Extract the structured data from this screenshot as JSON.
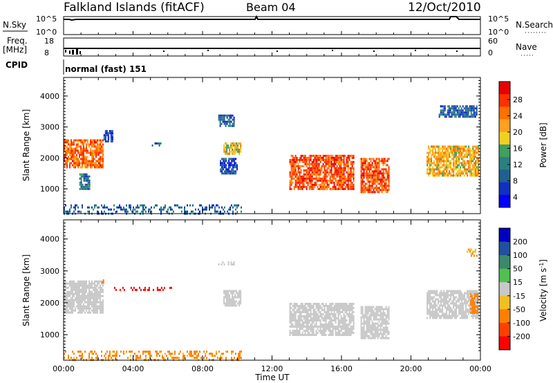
{
  "header": {
    "station": "Falkland Islands (fitACF)",
    "beam": "Beam 04",
    "date": "12/Oct/2010"
  },
  "top_panels": {
    "nsky_label": "N.Sky",
    "nsky_ticks": [
      "10^5",
      "10^0"
    ],
    "nsearch_label": "N.Search",
    "nsearch_ticks": [
      "10^5",
      "10^0"
    ],
    "freq_label": "Freq.",
    "freq_unit": "[MHz]",
    "freq_ticks": [
      "18",
      "8"
    ],
    "nave_label": "Nave",
    "nave_ticks": [
      "60",
      "0"
    ],
    "cpid_label": "CPID",
    "cpid_value": "normal (fast) 151"
  },
  "x_axis": {
    "label": "Time UT",
    "ticks": [
      "00:00",
      "04:00",
      "08:00",
      "12:00",
      "16:00",
      "20:00",
      "00:00"
    ]
  },
  "power_colorbar": {
    "label": "Power [dB]",
    "ticks": [
      "28",
      "24",
      "20",
      "16",
      "12",
      "8",
      "4"
    ],
    "colors": [
      "#e80000",
      "#ff3000",
      "#ff7000",
      "#ffa020",
      "#f0d020",
      "#40a060",
      "#2a8080",
      "#206090",
      "#1030c0",
      "#0000ff"
    ]
  },
  "velocity_colorbar": {
    "label": "Velocity [m s",
    "label_sup": "-1",
    "label_end": "]",
    "ticks": [
      "200",
      "100",
      "50",
      "15",
      "-15",
      "-50",
      "-100",
      "-200"
    ],
    "colors": [
      "#0000c0",
      "#2050a0",
      "#3a8a6a",
      "#50c050",
      "#c8c8c8",
      "#f0c020",
      "#ff8000",
      "#ff4000",
      "#ff0000"
    ]
  },
  "chart_data": [
    {
      "type": "heatmap",
      "panel": "power",
      "ylabel": "Slant Range [km]",
      "yticks": [
        1000,
        2000,
        3000,
        4000
      ],
      "ylim": [
        200,
        4600
      ],
      "xlim_hours": [
        0,
        24
      ],
      "xlabel": "Time UT",
      "colorbar_quantity": "Power [dB]",
      "colorbar_range": [
        0,
        32
      ],
      "regions": [
        {
          "t0": 0.0,
          "t1": 2.3,
          "r0": 1700,
          "r1": 2600,
          "value": 24
        },
        {
          "t0": 0.9,
          "t1": 1.5,
          "r0": 1000,
          "r1": 1500,
          "value": 10
        },
        {
          "t0": 2.3,
          "t1": 2.8,
          "r0": 2500,
          "r1": 2900,
          "value": 6
        },
        {
          "t0": 5.0,
          "t1": 5.6,
          "r0": 2400,
          "r1": 2500,
          "value": 6
        },
        {
          "t0": 8.9,
          "t1": 9.8,
          "r0": 3000,
          "r1": 3400,
          "value": 8
        },
        {
          "t0": 9.2,
          "t1": 10.2,
          "r0": 2100,
          "r1": 2500,
          "value": 18
        },
        {
          "t0": 9.0,
          "t1": 10.0,
          "r0": 1500,
          "r1": 2000,
          "value": 6
        },
        {
          "t0": 13.0,
          "t1": 16.7,
          "r0": 1000,
          "r1": 2100,
          "value": 26
        },
        {
          "t0": 17.1,
          "t1": 18.7,
          "r0": 900,
          "r1": 2000,
          "value": 26
        },
        {
          "t0": 20.9,
          "t1": 23.9,
          "r0": 1400,
          "r1": 2400,
          "value": 20
        },
        {
          "t0": 21.6,
          "t1": 23.8,
          "r0": 3300,
          "r1": 3700,
          "value": 8
        },
        {
          "t0": 0.0,
          "t1": 10.2,
          "r0": 200,
          "r1": 500,
          "value": 8
        }
      ]
    },
    {
      "type": "heatmap",
      "panel": "velocity",
      "ylabel": "Slant Range [km]",
      "yticks": [
        1000,
        2000,
        3000,
        4000
      ],
      "ylim": [
        200,
        4600
      ],
      "xlim_hours": [
        0,
        24
      ],
      "xlabel": "Time UT",
      "colorbar_quantity": "Velocity [m s^-1]",
      "colorbar_range": [
        -200,
        200
      ],
      "regions": [
        {
          "t0": 0.0,
          "t1": 2.3,
          "r0": 1700,
          "r1": 2700,
          "value": 0
        },
        {
          "t0": 2.1,
          "t1": 2.3,
          "r0": 2500,
          "r1": 2800,
          "value": -60
        },
        {
          "t0": 2.9,
          "t1": 6.4,
          "r0": 2400,
          "r1": 2500,
          "value": -250
        },
        {
          "t0": 8.9,
          "t1": 9.8,
          "r0": 3200,
          "r1": 3300,
          "value": 0
        },
        {
          "t0": 9.2,
          "t1": 10.2,
          "r0": 1900,
          "r1": 2400,
          "value": 0
        },
        {
          "t0": 13.0,
          "t1": 16.7,
          "r0": 1000,
          "r1": 2000,
          "value": 0
        },
        {
          "t0": 17.1,
          "t1": 18.7,
          "r0": 900,
          "r1": 1900,
          "value": 0
        },
        {
          "t0": 20.9,
          "t1": 23.9,
          "r0": 1500,
          "r1": 2400,
          "value": 0
        },
        {
          "t0": 23.4,
          "t1": 23.8,
          "r0": 1700,
          "r1": 2300,
          "value": -60
        },
        {
          "t0": 23.2,
          "t1": 23.8,
          "r0": 3500,
          "r1": 3700,
          "value": -30
        },
        {
          "t0": 0.0,
          "t1": 10.2,
          "r0": 200,
          "r1": 500,
          "value": -40
        }
      ]
    }
  ]
}
